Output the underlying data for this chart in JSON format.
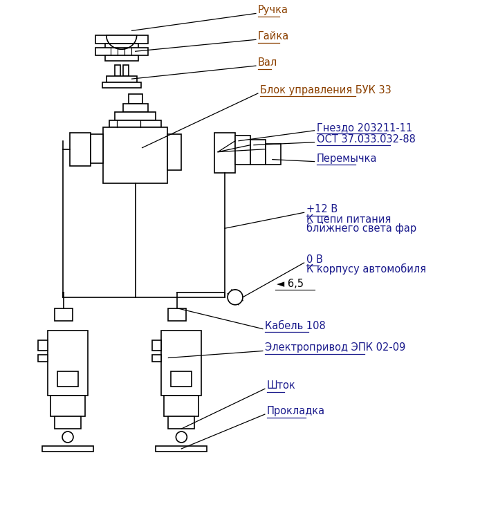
{
  "bg_color": "#ffffff",
  "lc": "#000000",
  "oc": "#8B4000",
  "dc": "#1a1a8c",
  "labels": {
    "ruchka": "Ручка",
    "gaika": "Гайка",
    "val": "Вал",
    "blok": "Блок управления БУК 33",
    "gnezdo": "Гнездо 203211-11",
    "ost": "ОСТ 37.033.032-88",
    "peremychka": "Перемычка",
    "plus12v": "+12 В",
    "kchepi": "К цепи питания",
    "blizhnego": "ближнего света фар",
    "nulv": "0 В",
    "kkorp": "К корпусу автомобиля",
    "size65": "◄ 6,5",
    "kabel": "Кабель 108",
    "epk": "Электропривод ЭПК 02-09",
    "shtok": "Шток",
    "prokladka": "Прокладка"
  },
  "figsize": [
    6.94,
    7.65
  ],
  "dpi": 100
}
